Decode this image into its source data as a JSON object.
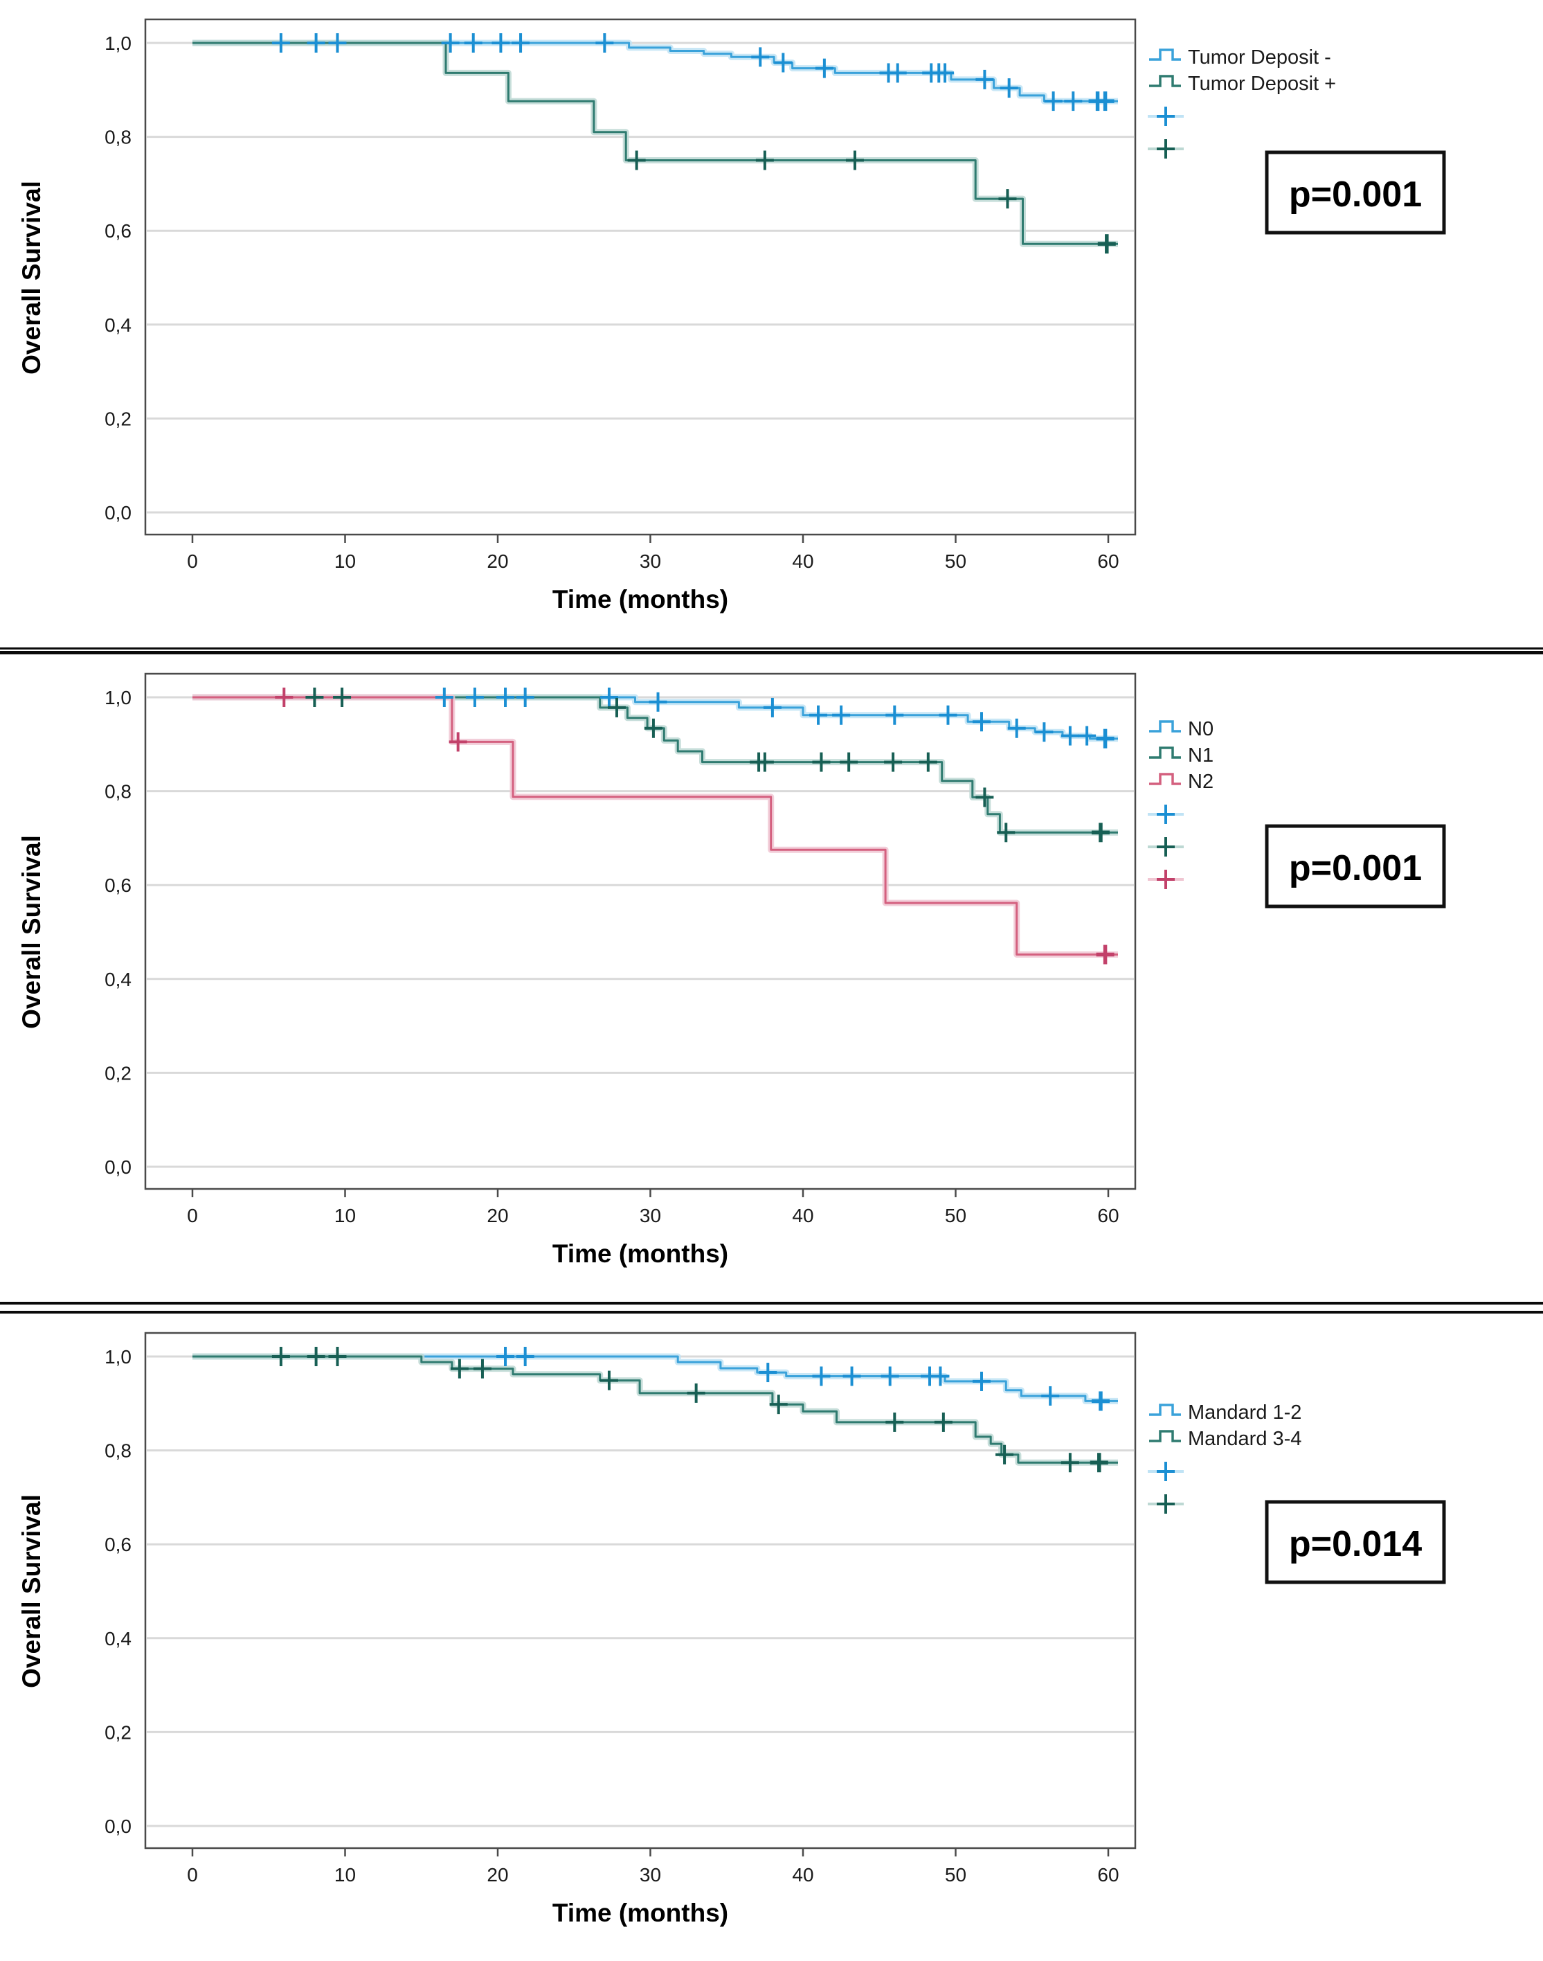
{
  "page": {
    "background": "#ffffff"
  },
  "axis": {
    "ylabel": "Overall Survival",
    "xlabel": "Time (months)",
    "ytick_labels": [
      "1,0",
      "0,8",
      "0,6",
      "0,4",
      "0,2",
      "0,0"
    ],
    "yticks": [
      1.0,
      0.8,
      0.6,
      0.4,
      0.2,
      0.0
    ],
    "xticks": [
      0,
      10,
      20,
      30,
      40,
      50,
      60
    ],
    "xlim": [
      0,
      60
    ],
    "ylim": [
      0.0,
      1.0
    ],
    "grid": true
  },
  "chart_data": [
    {
      "type": "line",
      "subtype": "kaplan-meier-step",
      "title": "",
      "xlabel": "Time (months)",
      "ylabel": "Overall Survival",
      "xlim": [
        0,
        60
      ],
      "ylim": [
        0.0,
        1.0
      ],
      "grid": true,
      "legend_position": "right",
      "p_value_label": "p=0.001",
      "layout": {
        "legend_y": 70,
        "pbox_y": 220
      },
      "series": [
        {
          "name": "Tumor Deposit -",
          "color": "#3aa2da",
          "halo": "#c0e3f5",
          "mark_color": "#1b8fd3",
          "start": 1.0,
          "drops": [
            [
              28.6,
              0.99
            ],
            [
              31.3,
              0.983
            ],
            [
              33.5,
              0.977
            ],
            [
              35.3,
              0.97
            ],
            [
              38.1,
              0.958
            ],
            [
              39.3,
              0.946
            ],
            [
              42.1,
              0.936
            ],
            [
              49.7,
              0.922
            ],
            [
              52.5,
              0.904
            ],
            [
              54.2,
              0.888
            ],
            [
              55.8,
              0.876
            ]
          ],
          "censor_times": [
            5.8,
            8.1,
            9.5,
            16.9,
            18.4,
            20.2,
            21.5,
            27,
            37.2,
            38.7,
            41.4,
            45.6,
            46.2,
            48.4,
            48.9,
            49.3,
            51.9,
            53.5,
            56.4,
            57.7,
            59.3,
            59.8
          ]
        },
        {
          "name": "Tumor Deposit +",
          "color": "#2f7b70",
          "halo": "#bdd8d3",
          "mark_color": "#175f54",
          "start": 1.0,
          "drops": [
            [
              16.6,
              0.936
            ],
            [
              20.7,
              0.876
            ],
            [
              26.3,
              0.81
            ],
            [
              28.4,
              0.75
            ],
            [
              51.3,
              0.668
            ],
            [
              54.4,
              0.572
            ]
          ],
          "censor_times": [
            29.1,
            37.5,
            43.4,
            53.4,
            59.9
          ]
        }
      ]
    },
    {
      "type": "line",
      "subtype": "kaplan-meier-step",
      "title": "",
      "xlabel": "Time (months)",
      "ylabel": "Overall Survival",
      "xlim": [
        0,
        60
      ],
      "ylim": [
        0.0,
        1.0
      ],
      "grid": true,
      "legend_position": "right",
      "p_value_label": "p=0.001",
      "layout": {
        "legend_y": 95,
        "pbox_y": 248
      },
      "series": [
        {
          "name": "N0",
          "color": "#3aa2da",
          "halo": "#c0e3f5",
          "mark_color": "#1b8fd3",
          "start": 1.0,
          "drops": [
            [
              29,
              0.99
            ],
            [
              35.8,
              0.978
            ],
            [
              40,
              0.962
            ],
            [
              50.8,
              0.948
            ],
            [
              53.5,
              0.934
            ],
            [
              55.2,
              0.926
            ],
            [
              57,
              0.918
            ],
            [
              58.8,
              0.912
            ]
          ],
          "censor_times": [
            16.5,
            18.5,
            20.5,
            21.8,
            27.3,
            30.5,
            38,
            41,
            42.5,
            46,
            49.5,
            51.7,
            54,
            55.8,
            57.5,
            58.6,
            59.8
          ]
        },
        {
          "name": "N1",
          "color": "#2f7b70",
          "halo": "#bdd8d3",
          "mark_color": "#175f54",
          "start": 1.0,
          "drops": [
            [
              26.7,
              0.978
            ],
            [
              28.5,
              0.956
            ],
            [
              29.8,
              0.934
            ],
            [
              30.9,
              0.908
            ],
            [
              31.8,
              0.885
            ],
            [
              33.4,
              0.862
            ],
            [
              49.1,
              0.822
            ],
            [
              51.1,
              0.787
            ],
            [
              52.1,
              0.751
            ],
            [
              52.9,
              0.712
            ]
          ],
          "censor_times": [
            8,
            9.8,
            27.8,
            30.2,
            37.1,
            37.5,
            41.2,
            43,
            45.9,
            48.2,
            51.9,
            53.3,
            59.5
          ]
        },
        {
          "name": "N2",
          "color": "#d4607f",
          "halo": "#f0c6d2",
          "mark_color": "#c2416a",
          "start": 1.0,
          "drops": [
            [
              17,
              0.905
            ],
            [
              21,
              0.788
            ],
            [
              37.9,
              0.675
            ],
            [
              45.4,
              0.562
            ],
            [
              54,
              0.452
            ]
          ],
          "censor_times": [
            6,
            17.4,
            59.8
          ]
        }
      ]
    },
    {
      "type": "line",
      "subtype": "kaplan-meier-step",
      "title": "",
      "xlabel": "Time (months)",
      "ylabel": "Overall Survival",
      "xlim": [
        0,
        60
      ],
      "ylim": [
        0.0,
        1.0
      ],
      "grid": true,
      "legend_position": "right",
      "p_value_label": "p=0.014",
      "layout": {
        "legend_y": 130,
        "pbox_y": 272
      },
      "series": [
        {
          "name": "Mandard 1-2",
          "color": "#3aa2da",
          "halo": "#c0e3f5",
          "mark_color": "#1b8fd3",
          "start": 1.0,
          "drops": [
            [
              31.8,
              0.988
            ],
            [
              34.6,
              0.975
            ],
            [
              37,
              0.966
            ],
            [
              38.9,
              0.958
            ],
            [
              49.3,
              0.947
            ],
            [
              53.3,
              0.928
            ],
            [
              54.3,
              0.916
            ],
            [
              58.5,
              0.905
            ]
          ],
          "censor_times": [
            20.5,
            21.8,
            37.7,
            41.2,
            43.2,
            45.7,
            48.3,
            49,
            51.7,
            56.2,
            59.5
          ]
        },
        {
          "name": "Mandard 3-4",
          "color": "#2f7b70",
          "halo": "#bdd8d3",
          "mark_color": "#175f54",
          "start": 1.0,
          "drops": [
            [
              15,
              0.988
            ],
            [
              17,
              0.974
            ],
            [
              21,
              0.962
            ],
            [
              26.7,
              0.949
            ],
            [
              29.3,
              0.922
            ],
            [
              38,
              0.898
            ],
            [
              40,
              0.883
            ],
            [
              42.2,
              0.86
            ],
            [
              51.3,
              0.829
            ],
            [
              52.3,
              0.814
            ],
            [
              53,
              0.791
            ],
            [
              54.1,
              0.774
            ]
          ],
          "censor_times": [
            5.8,
            8.1,
            9.5,
            17.5,
            19,
            27.3,
            33,
            38.4,
            46,
            49.2,
            53.2,
            57.5,
            59.4
          ]
        }
      ]
    }
  ],
  "separators": {
    "between_panel_1_and_2": "double-rule-narrow-gap",
    "between_panel_2_and_3": "double-rule-wide-gap"
  }
}
